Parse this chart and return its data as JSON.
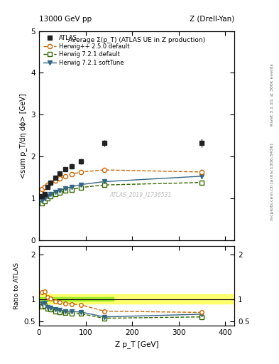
{
  "title_top_left": "13000 GeV pp",
  "title_top_right": "Z (Drell-Yan)",
  "main_title": "Average Σ(p_T) (ATLAS UE in Z production)",
  "ylabel_main": "<sum p_T/dη dϕ> [GeV]",
  "ylabel_ratio": "Ratio to ATLAS",
  "xlabel": "Z p_T [GeV]",
  "right_label_top": "Rivet 3.1.10, ≥ 300k events",
  "right_label_bottom": "mcplots.cern.ch [arXiv:1306.3436]",
  "watermark": "ATLAS_2019_I1736531",
  "atlas_x": [
    6,
    12,
    18,
    25,
    35,
    45,
    57,
    70,
    90,
    140,
    350
  ],
  "atlas_y": [
    1.05,
    1.1,
    1.28,
    1.37,
    1.5,
    1.6,
    1.7,
    1.77,
    1.88,
    2.32,
    2.32
  ],
  "atlas_yerr": [
    0.04,
    0.04,
    0.04,
    0.04,
    0.04,
    0.05,
    0.05,
    0.06,
    0.07,
    0.08,
    0.1
  ],
  "hwpp_x": [
    6,
    12,
    18,
    25,
    35,
    45,
    57,
    70,
    90,
    140,
    350
  ],
  "hwpp_y": [
    1.22,
    1.28,
    1.33,
    1.38,
    1.43,
    1.48,
    1.53,
    1.58,
    1.63,
    1.68,
    1.63
  ],
  "hwpp_yerr": [
    0.01,
    0.01,
    0.01,
    0.01,
    0.01,
    0.01,
    0.02,
    0.02,
    0.02,
    0.03,
    0.07
  ],
  "hw721d_x": [
    6,
    12,
    18,
    25,
    35,
    45,
    57,
    70,
    90,
    140,
    350
  ],
  "hw721d_y": [
    0.88,
    0.93,
    1.0,
    1.05,
    1.1,
    1.14,
    1.18,
    1.21,
    1.26,
    1.32,
    1.38
  ],
  "hw721d_yerr": [
    0.01,
    0.01,
    0.01,
    0.01,
    0.01,
    0.01,
    0.01,
    0.01,
    0.02,
    0.02,
    0.05
  ],
  "hw721s_x": [
    6,
    12,
    18,
    25,
    35,
    45,
    57,
    70,
    90,
    140,
    350
  ],
  "hw721s_y": [
    0.95,
    1.0,
    1.05,
    1.1,
    1.15,
    1.19,
    1.24,
    1.28,
    1.33,
    1.4,
    1.53
  ],
  "hw721s_yerr": [
    0.01,
    0.01,
    0.01,
    0.01,
    0.01,
    0.01,
    0.01,
    0.01,
    0.02,
    0.02,
    0.06
  ],
  "ratio_hwpp_y": [
    1.16,
    1.17,
    1.04,
    1.01,
    0.95,
    0.93,
    0.9,
    0.89,
    0.87,
    0.73,
    0.7
  ],
  "ratio_hwpp_yerr": [
    0.01,
    0.01,
    0.01,
    0.01,
    0.01,
    0.01,
    0.01,
    0.01,
    0.02,
    0.02,
    0.06
  ],
  "ratio_hw721d_y": [
    0.84,
    0.85,
    0.78,
    0.77,
    0.73,
    0.71,
    0.69,
    0.68,
    0.67,
    0.57,
    0.6
  ],
  "ratio_hw721d_yerr": [
    0.01,
    0.01,
    0.01,
    0.01,
    0.01,
    0.01,
    0.01,
    0.01,
    0.01,
    0.01,
    0.04
  ],
  "ratio_hw721s_y": [
    0.9,
    0.91,
    0.82,
    0.8,
    0.77,
    0.75,
    0.73,
    0.72,
    0.71,
    0.6,
    0.66
  ],
  "ratio_hw721s_yerr": [
    0.01,
    0.01,
    0.01,
    0.01,
    0.01,
    0.01,
    0.01,
    0.01,
    0.01,
    0.01,
    0.04
  ],
  "band_xmax_inner": 160,
  "band_y_inner_lo": 0.96,
  "band_y_inner_hi": 1.04,
  "band_y_outer_lo": 0.9,
  "band_y_outer_hi": 1.1,
  "color_atlas": "#222222",
  "color_hwpp": "#cc6600",
  "color_hw721d": "#336600",
  "color_hw721s": "#336688",
  "ylim_main": [
    0.0,
    5.0
  ],
  "ylim_ratio": [
    0.4,
    2.2
  ],
  "xlim": [
    0,
    420
  ],
  "xticks_main": [
    0,
    100,
    200,
    300,
    400
  ],
  "xticks_ratio": [
    0,
    100,
    200,
    300,
    400
  ],
  "yticks_main": [
    0,
    1,
    2,
    3,
    4,
    5
  ],
  "yticks_ratio_left": [
    0.5,
    1.0,
    2.0
  ],
  "yticks_ratio_right": [
    0.5,
    1.0,
    2.0
  ]
}
